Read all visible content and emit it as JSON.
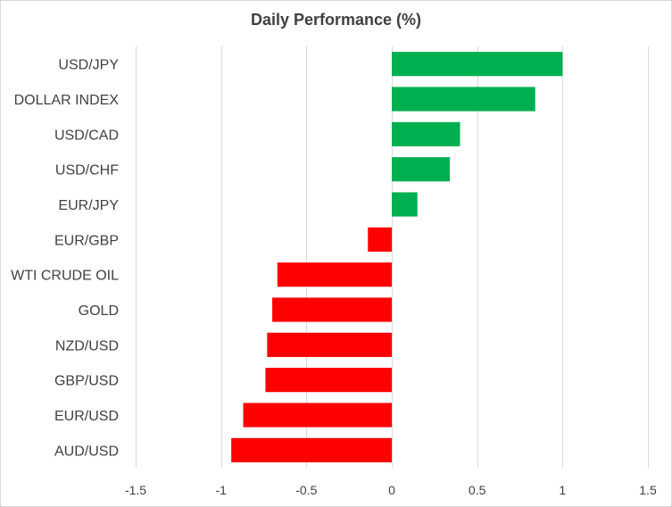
{
  "chart_data": {
    "type": "bar",
    "orientation": "horizontal",
    "title": "Daily Performance  (%)",
    "categories": [
      "USD/JPY",
      "DOLLAR INDEX",
      "USD/CAD",
      "USD/CHF",
      "EUR/JPY",
      "EUR/GBP",
      "WTI CRUDE OIL",
      "GOLD",
      "NZD/USD",
      "GBP/USD",
      "EUR/USD",
      "AUD/USD"
    ],
    "values": [
      1.0,
      0.84,
      0.4,
      0.34,
      0.15,
      -0.14,
      -0.67,
      -0.7,
      -0.73,
      -0.74,
      -0.87,
      -0.94
    ],
    "xlim": [
      -1.5,
      1.5
    ],
    "xticks": [
      -1.5,
      -1,
      -0.5,
      0,
      0.5,
      1,
      1.5
    ],
    "xtick_labels": [
      "-1.5",
      "-1",
      "-0.5",
      "0",
      "0.5",
      "1",
      "1.5"
    ],
    "xlabel": "",
    "ylabel": "",
    "grid": true,
    "colors": {
      "positive": "#00b050",
      "negative": "#ff0000",
      "grid": "#d9d9d9"
    }
  }
}
